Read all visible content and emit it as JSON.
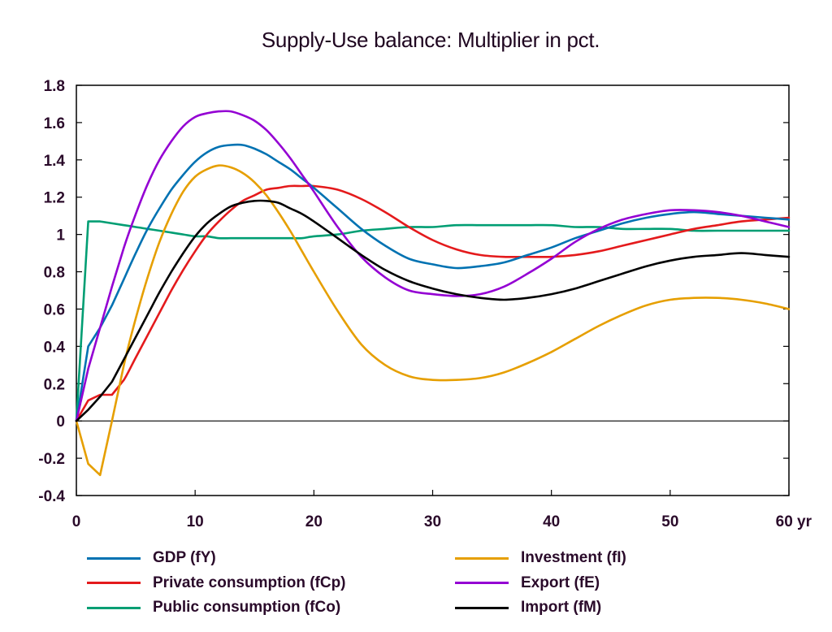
{
  "chart_data": {
    "type": "line",
    "title": "Supply-Use balance: Multiplier in pct.",
    "xlabel": "",
    "ylabel": "",
    "x_unit_label": "yr",
    "xlim": [
      0,
      60
    ],
    "ylim": [
      -0.4,
      1.8
    ],
    "grid": false,
    "legend_placement": "bottom",
    "x_ticks": [
      0,
      10,
      20,
      30,
      40,
      50,
      60
    ],
    "x_tick_labels": [
      "0",
      "10",
      "20",
      "30",
      "40",
      "50",
      "60 yr"
    ],
    "y_ticks": [
      -0.4,
      -0.2,
      0,
      0.2,
      0.4,
      0.6,
      0.8,
      1,
      1.2,
      1.4,
      1.6,
      1.8
    ],
    "y_tick_labels": [
      "-0.4",
      "-0.2",
      "0",
      "0.2",
      "0.4",
      "0.6",
      "0.8",
      "1",
      "1.2",
      "1.4",
      "1.6",
      "1.8"
    ],
    "x": [
      0,
      1,
      2,
      3,
      4,
      5,
      6,
      7,
      8,
      9,
      10,
      11,
      12,
      13,
      14,
      15,
      16,
      17,
      18,
      19,
      20,
      22,
      24,
      26,
      28,
      30,
      32,
      34,
      36,
      38,
      40,
      42,
      44,
      46,
      48,
      50,
      52,
      54,
      56,
      58,
      60
    ],
    "series": [
      {
        "name": "GDP (fY)",
        "color": "#0072b2",
        "values": [
          0,
          0.4,
          0.5,
          0.62,
          0.76,
          0.9,
          1.03,
          1.14,
          1.24,
          1.32,
          1.39,
          1.44,
          1.47,
          1.48,
          1.48,
          1.46,
          1.43,
          1.39,
          1.35,
          1.3,
          1.25,
          1.14,
          1.03,
          0.94,
          0.87,
          0.84,
          0.82,
          0.83,
          0.85,
          0.89,
          0.93,
          0.98,
          1.02,
          1.06,
          1.09,
          1.11,
          1.12,
          1.11,
          1.1,
          1.09,
          1.08
        ]
      },
      {
        "name": "Private consumption (fCp)",
        "color": "#e41a1c",
        "values": [
          0,
          0.11,
          0.14,
          0.14,
          0.22,
          0.34,
          0.46,
          0.58,
          0.7,
          0.81,
          0.91,
          1.0,
          1.07,
          1.13,
          1.18,
          1.21,
          1.24,
          1.25,
          1.26,
          1.26,
          1.26,
          1.24,
          1.19,
          1.12,
          1.04,
          0.97,
          0.92,
          0.89,
          0.88,
          0.88,
          0.88,
          0.89,
          0.91,
          0.94,
          0.97,
          1.0,
          1.03,
          1.05,
          1.07,
          1.08,
          1.09
        ]
      },
      {
        "name": "Public consumption (fCo)",
        "color": "#009e73",
        "values": [
          0,
          1.07,
          1.07,
          1.06,
          1.05,
          1.04,
          1.03,
          1.02,
          1.01,
          1.0,
          0.99,
          0.99,
          0.98,
          0.98,
          0.98,
          0.98,
          0.98,
          0.98,
          0.98,
          0.98,
          0.99,
          1.0,
          1.02,
          1.03,
          1.04,
          1.04,
          1.05,
          1.05,
          1.05,
          1.05,
          1.05,
          1.04,
          1.04,
          1.03,
          1.03,
          1.03,
          1.02,
          1.02,
          1.02,
          1.02,
          1.02
        ]
      },
      {
        "name": "Investment (fI)",
        "color": "#e69f00",
        "values": [
          0,
          -0.23,
          -0.29,
          0.0,
          0.3,
          0.55,
          0.77,
          0.96,
          1.11,
          1.23,
          1.31,
          1.35,
          1.37,
          1.36,
          1.33,
          1.28,
          1.21,
          1.12,
          1.02,
          0.91,
          0.8,
          0.59,
          0.41,
          0.3,
          0.24,
          0.22,
          0.22,
          0.23,
          0.26,
          0.31,
          0.37,
          0.44,
          0.51,
          0.57,
          0.62,
          0.65,
          0.66,
          0.66,
          0.65,
          0.63,
          0.6
        ]
      },
      {
        "name": "Export (fE)",
        "color": "#9400d3",
        "values": [
          0,
          0.28,
          0.5,
          0.72,
          0.93,
          1.11,
          1.27,
          1.4,
          1.5,
          1.58,
          1.63,
          1.65,
          1.66,
          1.66,
          1.64,
          1.61,
          1.56,
          1.49,
          1.41,
          1.32,
          1.23,
          1.04,
          0.88,
          0.77,
          0.7,
          0.68,
          0.67,
          0.68,
          0.72,
          0.79,
          0.87,
          0.96,
          1.03,
          1.08,
          1.11,
          1.13,
          1.13,
          1.12,
          1.1,
          1.07,
          1.04
        ]
      },
      {
        "name": "Import (fM)",
        "color": "#000000",
        "values": [
          0,
          0.06,
          0.13,
          0.21,
          0.33,
          0.45,
          0.57,
          0.69,
          0.8,
          0.9,
          0.99,
          1.06,
          1.11,
          1.15,
          1.17,
          1.18,
          1.18,
          1.17,
          1.14,
          1.11,
          1.07,
          0.98,
          0.89,
          0.81,
          0.75,
          0.71,
          0.68,
          0.66,
          0.65,
          0.66,
          0.68,
          0.71,
          0.75,
          0.79,
          0.83,
          0.86,
          0.88,
          0.89,
          0.9,
          0.89,
          0.88
        ]
      }
    ]
  }
}
